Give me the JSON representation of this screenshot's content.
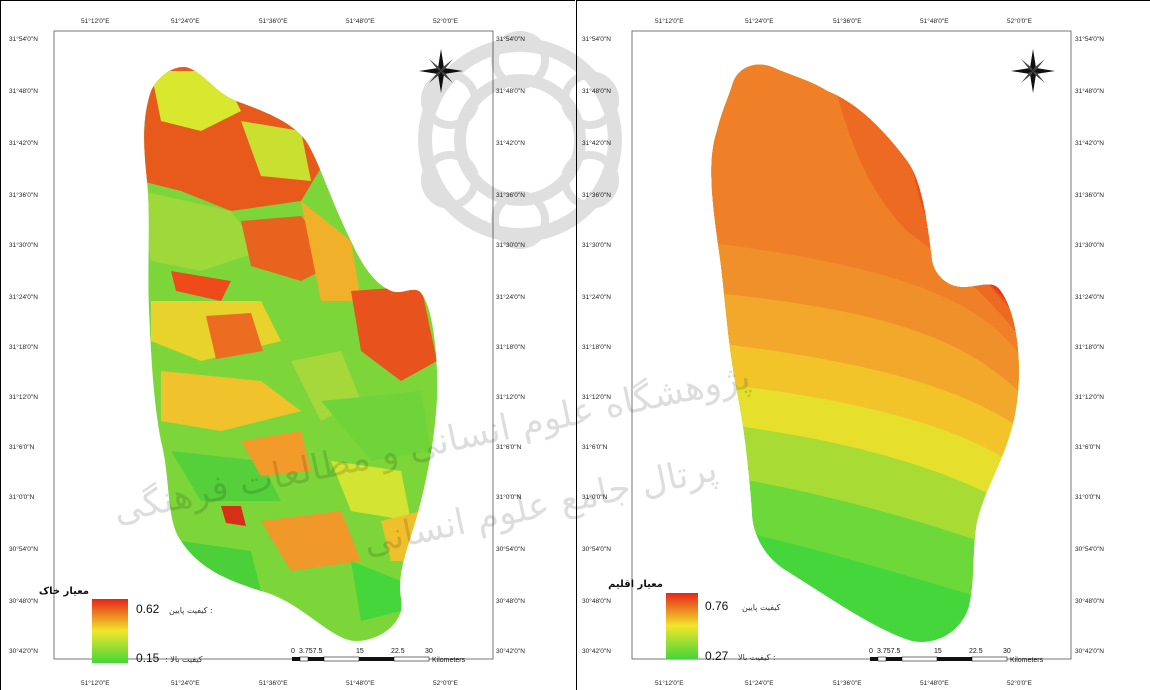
{
  "maps": [
    {
      "title": "معیار خاک",
      "legend_low_label": "کیفیت پایین : 0.62",
      "legend_low_value": "0.62",
      "legend_low_text": "کیفیت پایین :",
      "legend_high_value": "0.15",
      "legend_high_text": ": کیفیت بالا",
      "lat_labels": [
        "31°54'0\"N",
        "31°48'0\"N",
        "31°42'0\"N",
        "31°36'0\"N",
        "31°30'0\"N",
        "31°24'0\"N",
        "31°18'0\"N",
        "31°12'0\"N",
        "31°6'0\"N",
        "31°0'0\"N",
        "30°54'0\"N",
        "30°48'0\"N",
        "30°42'0\"N"
      ],
      "lon_labels": [
        "51°12'0\"E",
        "51°24'0\"E",
        "51°36'0\"E",
        "51°48'0\"E",
        "52°0'0\"E"
      ]
    },
    {
      "title": "معیار اقلیم",
      "legend_low_value": "0.76",
      "legend_low_text": "کیفیت پایین",
      "legend_high_value": "0.27",
      "legend_high_text": "کیفیت بالا :",
      "lat_labels": [
        "31°54'0\"N",
        "31°48'0\"N",
        "31°42'0\"N",
        "31°36'0\"N",
        "31°30'0\"N",
        "31°24'0\"N",
        "31°18'0\"N",
        "31°12'0\"N",
        "31°6'0\"N",
        "31°0'0\"N",
        "30°54'0\"N",
        "30°48'0\"N",
        "30°42'0\"N"
      ],
      "lon_labels": [
        "51°12'0\"E",
        "51°24'0\"E",
        "51°36'0\"E",
        "51°48'0\"E",
        "52°0'0\"E"
      ]
    }
  ],
  "scale_bar": {
    "ticks": [
      "0",
      "3.757.5",
      "15",
      "22.5",
      "30"
    ],
    "unit": "Kilometers"
  },
  "watermark": {
    "line1": "پژوهشگاه علوم انسانی و مطالعات فرهنگی",
    "line2": "پرتال جامع علوم انسانی"
  },
  "colors": {
    "high_suitability": "#44d63a",
    "mid": "#f2e62a",
    "low_suitability": "#e8251a",
    "orange": "#f0802a"
  }
}
